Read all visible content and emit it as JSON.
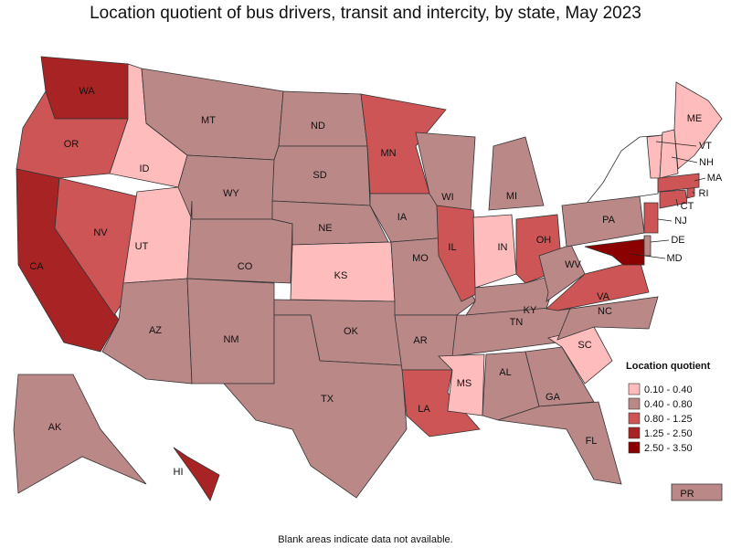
{
  "title": "Location quotient of bus drivers, transit and intercity, by state, May 2023",
  "legend": {
    "title": "Location quotient",
    "items": [
      {
        "label": "0.10 - 0.40",
        "color": "#ffbcbc"
      },
      {
        "label": "0.40 - 0.80",
        "color": "#bb8888"
      },
      {
        "label": "0.80 - 1.25",
        "color": "#cd5555"
      },
      {
        "label": "1.25 - 2.50",
        "color": "#a82424"
      },
      {
        "label": "2.50 - 3.50",
        "color": "#8b0000"
      }
    ]
  },
  "states": [
    {
      "abbr": "WA",
      "color": "#a82424"
    },
    {
      "abbr": "OR",
      "color": "#cd5555"
    },
    {
      "abbr": "CA",
      "color": "#a82424"
    },
    {
      "abbr": "NV",
      "color": "#cd5555"
    },
    {
      "abbr": "ID",
      "color": "#ffbcbc"
    },
    {
      "abbr": "UT",
      "color": "#ffbcbc"
    },
    {
      "abbr": "AZ",
      "color": "#bb8888"
    },
    {
      "abbr": "MT",
      "color": "#bb8888"
    },
    {
      "abbr": "WY",
      "color": "#bb8888"
    },
    {
      "abbr": "CO",
      "color": "#bb8888"
    },
    {
      "abbr": "NM",
      "color": "#bb8888"
    },
    {
      "abbr": "ND",
      "color": "#bb8888"
    },
    {
      "abbr": "SD",
      "color": "#bb8888"
    },
    {
      "abbr": "NE",
      "color": "#bb8888"
    },
    {
      "abbr": "KS",
      "color": "#ffbcbc"
    },
    {
      "abbr": "OK",
      "color": "#bb8888"
    },
    {
      "abbr": "TX",
      "color": "#bb8888"
    },
    {
      "abbr": "MN",
      "color": "#cd5555"
    },
    {
      "abbr": "IA",
      "color": "#bb8888"
    },
    {
      "abbr": "MO",
      "color": "#bb8888"
    },
    {
      "abbr": "AR",
      "color": "#bb8888"
    },
    {
      "abbr": "LA",
      "color": "#cd5555"
    },
    {
      "abbr": "WI",
      "color": "#bb8888"
    },
    {
      "abbr": "IL",
      "color": "#cd5555"
    },
    {
      "abbr": "MI",
      "color": "#bb8888"
    },
    {
      "abbr": "IN",
      "color": "#ffbcbc"
    },
    {
      "abbr": "OH",
      "color": "#cd5555"
    },
    {
      "abbr": "KY",
      "color": "#bb8888"
    },
    {
      "abbr": "TN",
      "color": "#bb8888"
    },
    {
      "abbr": "MS",
      "color": "#ffbcbc"
    },
    {
      "abbr": "AL",
      "color": "#bb8888"
    },
    {
      "abbr": "GA",
      "color": "#bb8888"
    },
    {
      "abbr": "FL",
      "color": "#bb8888"
    },
    {
      "abbr": "SC",
      "color": "#ffbcbc"
    },
    {
      "abbr": "NC",
      "color": "#bb8888"
    },
    {
      "abbr": "VA",
      "color": "#cd5555"
    },
    {
      "abbr": "WV",
      "color": "#bb8888"
    },
    {
      "abbr": "PA",
      "color": "#bb8888"
    },
    {
      "abbr": "MD",
      "color": "#8b0000"
    },
    {
      "abbr": "DE",
      "color": "#bb8888"
    },
    {
      "abbr": "NJ",
      "color": "#cd5555"
    },
    {
      "abbr": "CT",
      "color": "#cd5555"
    },
    {
      "abbr": "RI",
      "color": "#cd5555"
    },
    {
      "abbr": "MA",
      "color": "#cd5555"
    },
    {
      "abbr": "VT",
      "color": "#ffbcbc"
    },
    {
      "abbr": "NH",
      "color": "#ffbcbc"
    },
    {
      "abbr": "ME",
      "color": "#ffbcbc"
    },
    {
      "abbr": "AK",
      "color": "#bb8888"
    },
    {
      "abbr": "HI",
      "color": "#a82424"
    },
    {
      "abbr": "PR",
      "color": "#bb8888"
    }
  ],
  "footnote": "Blank areas indicate data not available."
}
